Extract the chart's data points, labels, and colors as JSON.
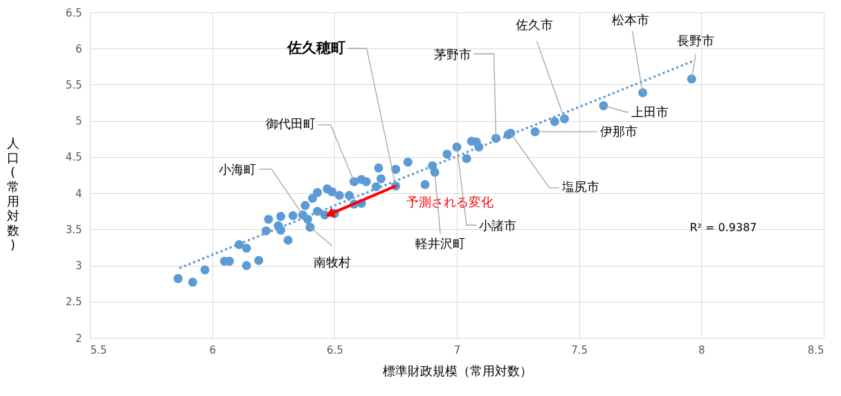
{
  "chart_data": {
    "type": "scatter",
    "xlabel": "標準財政規模（常用対数）",
    "ylabel": "人口(常用対数)",
    "xlim": [
      5.5,
      8.5
    ],
    "xticks": [
      5.5,
      {
        "value": 6,
        "label": "6"
      },
      6.5,
      {
        "value": 7,
        "label": "7"
      },
      7.5,
      {
        "value": 8,
        "label": "8"
      },
      8.5
    ],
    "ylim": [
      2,
      6.5
    ],
    "yticks": [
      {
        "value": 2,
        "label": "2"
      },
      2.5,
      {
        "value": 3,
        "label": "3"
      },
      3.5,
      {
        "value": 4,
        "label": "4"
      },
      4.5,
      {
        "value": 5,
        "label": "5"
      },
      5.5,
      {
        "value": 6,
        "label": "6"
      },
      6.5
    ],
    "grid": true,
    "marker": "circle",
    "series": [
      {
        "color": "#5b9bd5",
        "x": [
          5.86,
          5.92,
          5.97,
          6.05,
          6.07,
          6.14,
          6.19,
          6.11,
          6.14,
          6.31,
          6.22,
          6.23,
          6.28,
          6.27,
          6.28,
          6.33,
          6.37,
          6.39,
          6.4,
          6.38,
          6.41,
          6.43,
          6.47,
          6.49,
          6.52,
          6.56,
          6.43,
          6.46,
          6.5,
          6.58,
          6.61,
          6.63,
          6.58,
          6.61,
          6.68,
          6.69,
          6.67,
          6.75,
          6.8,
          6.75,
          6.87,
          6.9,
          6.91,
          6.96,
          7.0,
          7.04,
          7.06,
          7.08,
          7.09,
          7.16,
          7.21,
          7.22,
          7.32,
          7.4,
          7.44,
          7.6,
          7.76,
          7.96
        ],
        "values": [
          2.82,
          2.77,
          2.94,
          3.06,
          3.06,
          3.0,
          3.07,
          3.29,
          3.24,
          3.35,
          3.48,
          3.64,
          3.68,
          3.55,
          3.49,
          3.69,
          3.7,
          3.64,
          3.53,
          3.83,
          3.93,
          4.01,
          4.06,
          4.02,
          3.97,
          3.97,
          3.75,
          3.7,
          3.72,
          4.16,
          4.19,
          4.16,
          3.85,
          3.86,
          4.35,
          4.2,
          4.09,
          4.33,
          4.43,
          4.1,
          4.12,
          4.38,
          4.29,
          4.54,
          4.64,
          4.48,
          4.72,
          4.71,
          4.64,
          4.76,
          4.81,
          4.83,
          4.85,
          4.99,
          5.03,
          5.21,
          5.39,
          5.58
        ]
      },
      {
        "type": "line",
        "color": "#5b9bd5",
        "line_style": "dotted",
        "marker": "none",
        "x": [
          5.87,
          7.96
        ],
        "values": [
          2.97,
          5.82
        ]
      },
      {
        "type": "line",
        "name": "予測される変化",
        "color": "#ff0000",
        "line_style": "solid",
        "marker": "triangle",
        "x": [
          6.75,
          6.48
        ],
        "values": [
          4.1,
          3.71
        ]
      }
    ],
    "annotations": [
      {
        "text": "佐久穂町",
        "x": 6.75,
        "y": 4.1
      },
      {
        "text": "茅野市",
        "x": 7.16,
        "y": 4.76
      },
      {
        "text": "佐久市",
        "x": 7.44,
        "y": 5.03
      },
      {
        "text": "松本市",
        "x": 7.76,
        "y": 5.39
      },
      {
        "text": "長野市",
        "x": 7.96,
        "y": 5.58
      },
      {
        "text": "上田市",
        "x": 7.6,
        "y": 5.21
      },
      {
        "text": "伊那市",
        "x": 7.32,
        "y": 4.85
      },
      {
        "text": "塩尻市",
        "x": 7.22,
        "y": 4.83
      },
      {
        "text": "御代田町",
        "x": 6.58,
        "y": 4.16
      },
      {
        "text": "小海町",
        "x": 6.37,
        "y": 3.7
      },
      {
        "text": "南牧村",
        "x": 6.4,
        "y": 3.53
      },
      {
        "text": "軽井沢町",
        "x": 6.91,
        "y": 4.29
      },
      {
        "text": "小諸市",
        "x": 7.0,
        "y": 4.64
      },
      "R² = 0.9387"
    ]
  }
}
